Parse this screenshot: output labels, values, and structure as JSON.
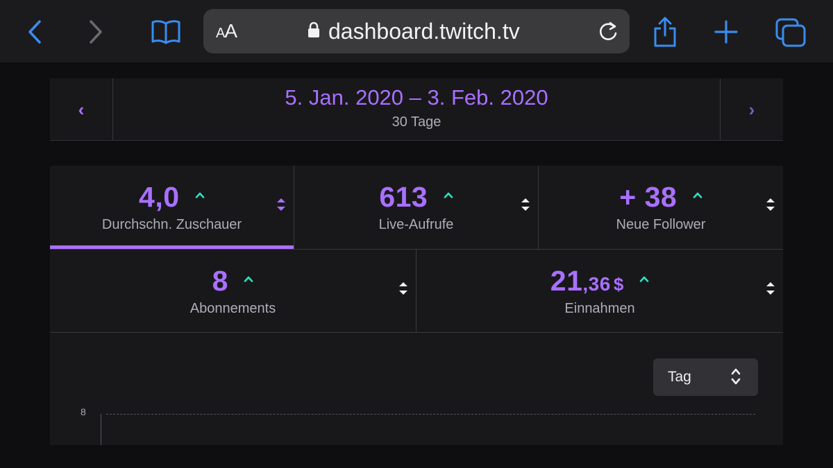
{
  "browser": {
    "url": "dashboard.twitch.tv",
    "text_size_button": "AA"
  },
  "date_nav": {
    "range": "5. Jan. 2020 – 3. Feb. 2020",
    "days": "30 Tage",
    "prev_symbol": "‹",
    "next_symbol": "›"
  },
  "stats": {
    "avg_viewers": {
      "value": "4,0",
      "label": "Durchschn. Zuschauer"
    },
    "live_views": {
      "value": "613",
      "label": "Live-Aufrufe"
    },
    "new_followers": {
      "value": "+ 38",
      "label": "Neue Follower"
    },
    "subscriptions": {
      "value": "8",
      "label": "Abonnements"
    },
    "revenue": {
      "value_int": "21",
      "value_dec": ",36",
      "currency": "$",
      "label": "Einnahmen"
    }
  },
  "chart": {
    "interval_select": "Tag",
    "y_tick": "8"
  },
  "colors": {
    "accent": "#a970ff",
    "trend_up": "#2de1c2",
    "background": "#0e0e10",
    "panel": "#18181b"
  }
}
